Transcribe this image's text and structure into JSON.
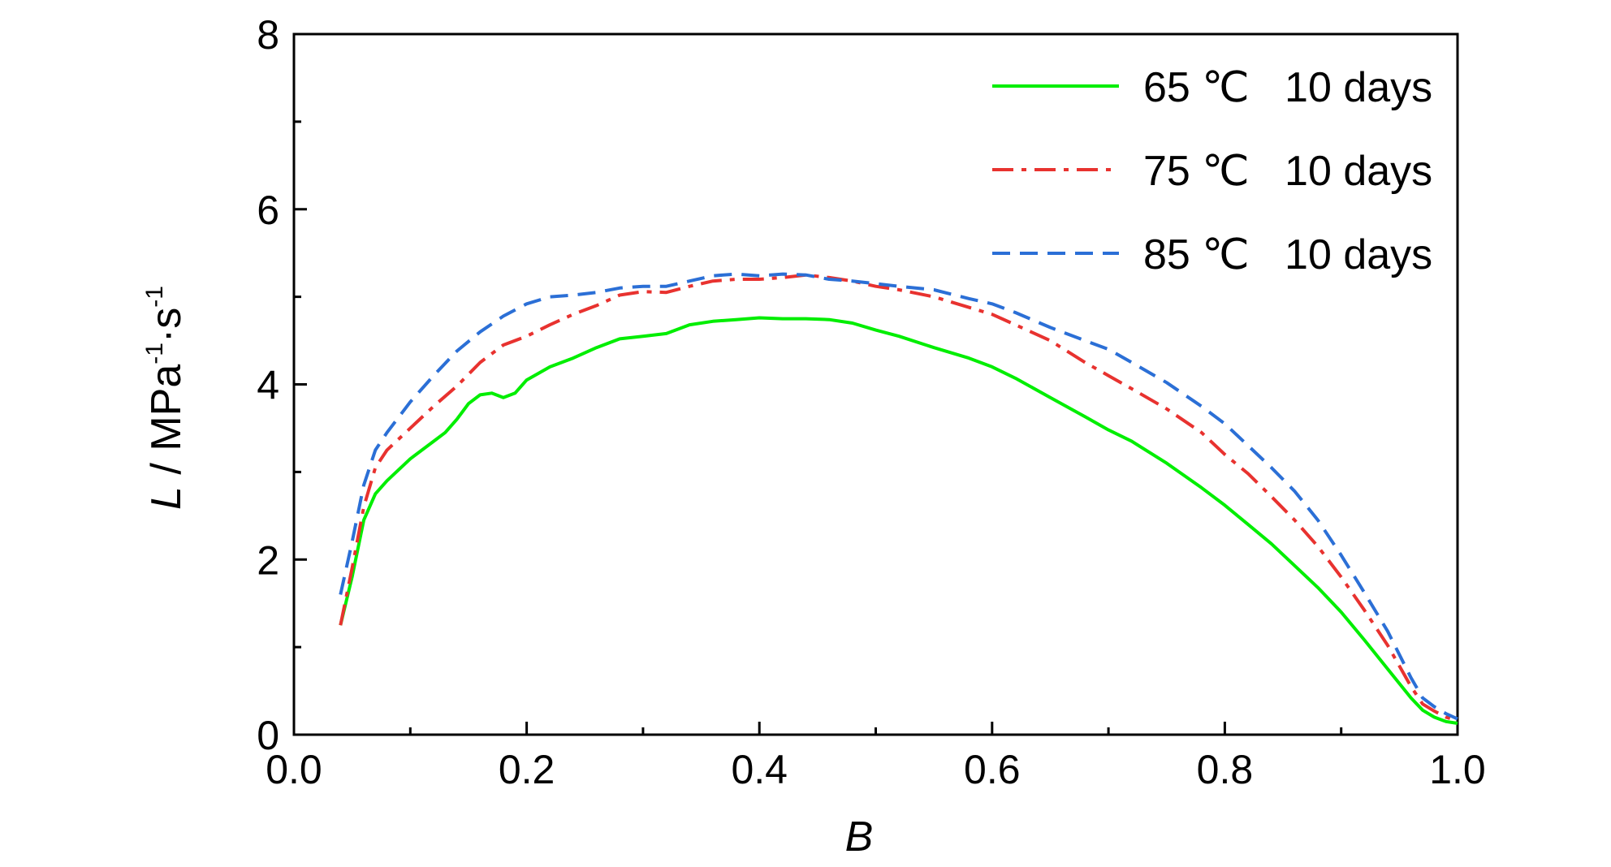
{
  "chart_data": {
    "type": "line",
    "xlabel": "B",
    "ylabel": {
      "main": "L",
      "sep": " / MPa",
      "sup1": "-1",
      "mid": "·s",
      "sup2": "-1"
    },
    "xlim": [
      0.0,
      1.0
    ],
    "ylim": [
      0,
      8
    ],
    "x_ticks": [
      0.0,
      0.2,
      0.4,
      0.6,
      0.8,
      1.0
    ],
    "x_tick_labels": [
      "0.0",
      "0.2",
      "0.4",
      "0.6",
      "0.8",
      "1.0"
    ],
    "y_ticks": [
      0,
      2,
      4,
      6,
      8
    ],
    "y_tick_labels": [
      "0",
      "2",
      "4",
      "6",
      "8"
    ],
    "grid": false,
    "legend_position": "top-right",
    "series": [
      {
        "name": "65 ℃   10 days",
        "color": "#00ee00",
        "dash": "solid",
        "points": [
          [
            0.04,
            1.25
          ],
          [
            0.05,
            1.8
          ],
          [
            0.06,
            2.45
          ],
          [
            0.07,
            2.75
          ],
          [
            0.08,
            2.9
          ],
          [
            0.1,
            3.15
          ],
          [
            0.12,
            3.35
          ],
          [
            0.13,
            3.45
          ],
          [
            0.14,
            3.6
          ],
          [
            0.15,
            3.78
          ],
          [
            0.16,
            3.88
          ],
          [
            0.17,
            3.9
          ],
          [
            0.18,
            3.85
          ],
          [
            0.19,
            3.9
          ],
          [
            0.2,
            4.05
          ],
          [
            0.22,
            4.2
          ],
          [
            0.24,
            4.3
          ],
          [
            0.26,
            4.42
          ],
          [
            0.28,
            4.52
          ],
          [
            0.3,
            4.55
          ],
          [
            0.32,
            4.58
          ],
          [
            0.34,
            4.68
          ],
          [
            0.36,
            4.72
          ],
          [
            0.38,
            4.74
          ],
          [
            0.4,
            4.76
          ],
          [
            0.42,
            4.75
          ],
          [
            0.44,
            4.75
          ],
          [
            0.46,
            4.74
          ],
          [
            0.48,
            4.7
          ],
          [
            0.5,
            4.62
          ],
          [
            0.52,
            4.55
          ],
          [
            0.55,
            4.42
          ],
          [
            0.58,
            4.3
          ],
          [
            0.6,
            4.2
          ],
          [
            0.62,
            4.07
          ],
          [
            0.65,
            3.85
          ],
          [
            0.68,
            3.63
          ],
          [
            0.7,
            3.48
          ],
          [
            0.72,
            3.35
          ],
          [
            0.75,
            3.1
          ],
          [
            0.78,
            2.82
          ],
          [
            0.8,
            2.62
          ],
          [
            0.82,
            2.4
          ],
          [
            0.84,
            2.18
          ],
          [
            0.86,
            1.93
          ],
          [
            0.88,
            1.68
          ],
          [
            0.9,
            1.4
          ],
          [
            0.92,
            1.08
          ],
          [
            0.94,
            0.75
          ],
          [
            0.96,
            0.42
          ],
          [
            0.97,
            0.28
          ],
          [
            0.98,
            0.2
          ],
          [
            0.99,
            0.15
          ],
          [
            1.0,
            0.13
          ]
        ]
      },
      {
        "name": "75 ℃   10 days",
        "color": "#e8322f",
        "dash": "dashdot",
        "points": [
          [
            0.04,
            1.25
          ],
          [
            0.05,
            1.9
          ],
          [
            0.06,
            2.6
          ],
          [
            0.07,
            3.05
          ],
          [
            0.08,
            3.25
          ],
          [
            0.1,
            3.5
          ],
          [
            0.12,
            3.75
          ],
          [
            0.14,
            3.98
          ],
          [
            0.16,
            4.25
          ],
          [
            0.18,
            4.45
          ],
          [
            0.2,
            4.55
          ],
          [
            0.22,
            4.68
          ],
          [
            0.24,
            4.8
          ],
          [
            0.26,
            4.9
          ],
          [
            0.28,
            5.02
          ],
          [
            0.3,
            5.06
          ],
          [
            0.32,
            5.05
          ],
          [
            0.34,
            5.12
          ],
          [
            0.36,
            5.18
          ],
          [
            0.38,
            5.2
          ],
          [
            0.4,
            5.2
          ],
          [
            0.42,
            5.22
          ],
          [
            0.44,
            5.25
          ],
          [
            0.46,
            5.22
          ],
          [
            0.48,
            5.18
          ],
          [
            0.5,
            5.12
          ],
          [
            0.52,
            5.08
          ],
          [
            0.55,
            5.0
          ],
          [
            0.58,
            4.88
          ],
          [
            0.6,
            4.8
          ],
          [
            0.62,
            4.68
          ],
          [
            0.65,
            4.5
          ],
          [
            0.68,
            4.25
          ],
          [
            0.7,
            4.1
          ],
          [
            0.72,
            3.95
          ],
          [
            0.75,
            3.72
          ],
          [
            0.78,
            3.45
          ],
          [
            0.8,
            3.2
          ],
          [
            0.82,
            2.98
          ],
          [
            0.84,
            2.72
          ],
          [
            0.86,
            2.45
          ],
          [
            0.88,
            2.15
          ],
          [
            0.9,
            1.8
          ],
          [
            0.92,
            1.42
          ],
          [
            0.94,
            1.02
          ],
          [
            0.96,
            0.55
          ],
          [
            0.97,
            0.35
          ],
          [
            0.98,
            0.27
          ],
          [
            0.99,
            0.2
          ],
          [
            1.0,
            0.16
          ]
        ]
      },
      {
        "name": "85 ℃   10 days",
        "color": "#2b6fd6",
        "dash": "dashed",
        "points": [
          [
            0.04,
            1.6
          ],
          [
            0.05,
            2.2
          ],
          [
            0.06,
            2.85
          ],
          [
            0.07,
            3.25
          ],
          [
            0.08,
            3.45
          ],
          [
            0.1,
            3.8
          ],
          [
            0.12,
            4.1
          ],
          [
            0.14,
            4.38
          ],
          [
            0.16,
            4.6
          ],
          [
            0.18,
            4.78
          ],
          [
            0.2,
            4.92
          ],
          [
            0.22,
            5.0
          ],
          [
            0.24,
            5.02
          ],
          [
            0.26,
            5.05
          ],
          [
            0.28,
            5.1
          ],
          [
            0.3,
            5.12
          ],
          [
            0.32,
            5.12
          ],
          [
            0.34,
            5.18
          ],
          [
            0.36,
            5.24
          ],
          [
            0.38,
            5.26
          ],
          [
            0.4,
            5.24
          ],
          [
            0.42,
            5.26
          ],
          [
            0.44,
            5.25
          ],
          [
            0.46,
            5.2
          ],
          [
            0.48,
            5.18
          ],
          [
            0.5,
            5.15
          ],
          [
            0.52,
            5.12
          ],
          [
            0.55,
            5.08
          ],
          [
            0.58,
            4.98
          ],
          [
            0.6,
            4.92
          ],
          [
            0.62,
            4.82
          ],
          [
            0.65,
            4.65
          ],
          [
            0.68,
            4.5
          ],
          [
            0.7,
            4.4
          ],
          [
            0.72,
            4.25
          ],
          [
            0.75,
            4.02
          ],
          [
            0.78,
            3.75
          ],
          [
            0.8,
            3.55
          ],
          [
            0.82,
            3.3
          ],
          [
            0.84,
            3.05
          ],
          [
            0.86,
            2.78
          ],
          [
            0.88,
            2.45
          ],
          [
            0.9,
            2.05
          ],
          [
            0.92,
            1.62
          ],
          [
            0.94,
            1.18
          ],
          [
            0.96,
            0.65
          ],
          [
            0.97,
            0.42
          ],
          [
            0.98,
            0.32
          ],
          [
            0.99,
            0.24
          ],
          [
            1.0,
            0.18
          ]
        ]
      }
    ]
  }
}
